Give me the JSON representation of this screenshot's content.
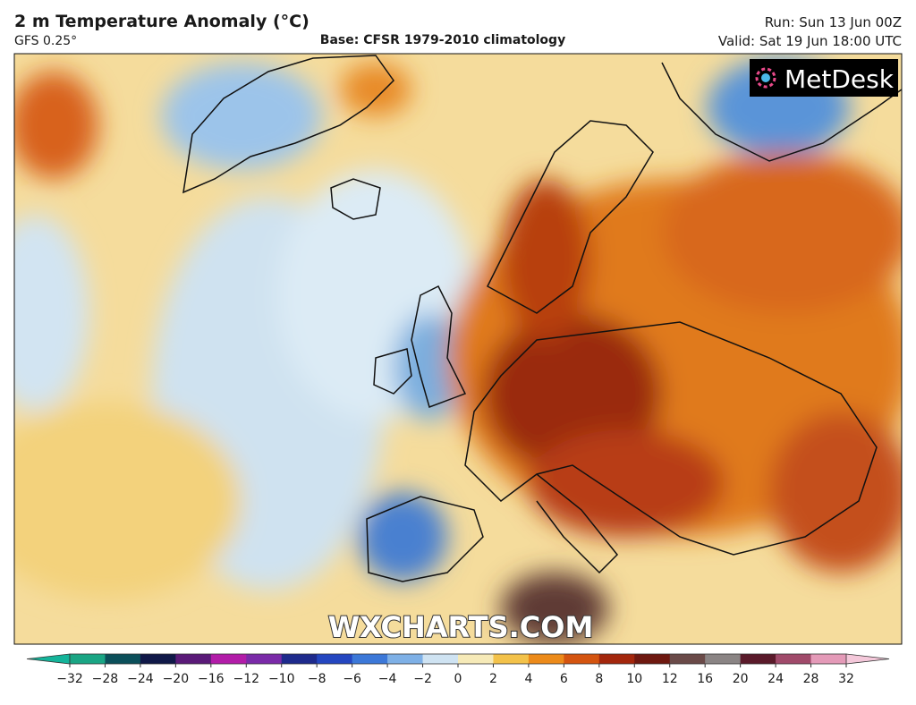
{
  "header": {
    "title": "2 m Temperature Anomaly (°C)",
    "model": "GFS 0.25°",
    "base": "Base: CFSR 1979-2010 climatology",
    "run": "Run: Sun 13 Jun 00Z",
    "valid": "Valid: Sat 19 Jun 18:00 UTC"
  },
  "map": {
    "logo": "MetDesk",
    "watermark": "WXCHARTS.COM"
  },
  "colorbar": {
    "ticks": [
      {
        "value": -32,
        "label": "−32"
      },
      {
        "value": -28,
        "label": "−28"
      },
      {
        "value": -24,
        "label": "−24"
      },
      {
        "value": -20,
        "label": "−20"
      },
      {
        "value": -16,
        "label": "−16"
      },
      {
        "value": -12,
        "label": "−12"
      },
      {
        "value": -10,
        "label": "−10"
      },
      {
        "value": -8,
        "label": "−8"
      },
      {
        "value": -6,
        "label": "−6"
      },
      {
        "value": -4,
        "label": "−4"
      },
      {
        "value": -2,
        "label": "−2"
      },
      0,
      2,
      4,
      6,
      8,
      10,
      12,
      16,
      20,
      24,
      28,
      32
    ],
    "colors": [
      "#1aa584",
      "#0b4f5a",
      "#101848",
      "#5a1a78",
      "#b21ca8",
      "#7a2aa8",
      "#1e2a8c",
      "#2446c0",
      "#3c78d8",
      "#7eb0e6",
      "#cfe3f2",
      "#f6eab8",
      "#f3c24a",
      "#ec8a1a",
      "#d45410",
      "#a3260c",
      "#6e1810",
      "#6a4a48",
      "#8a8484",
      "#5a1a2a",
      "#a04a6a",
      "#e49ab8"
    ],
    "under_color": "#14b49a",
    "over_color": "#f4c8da"
  }
}
